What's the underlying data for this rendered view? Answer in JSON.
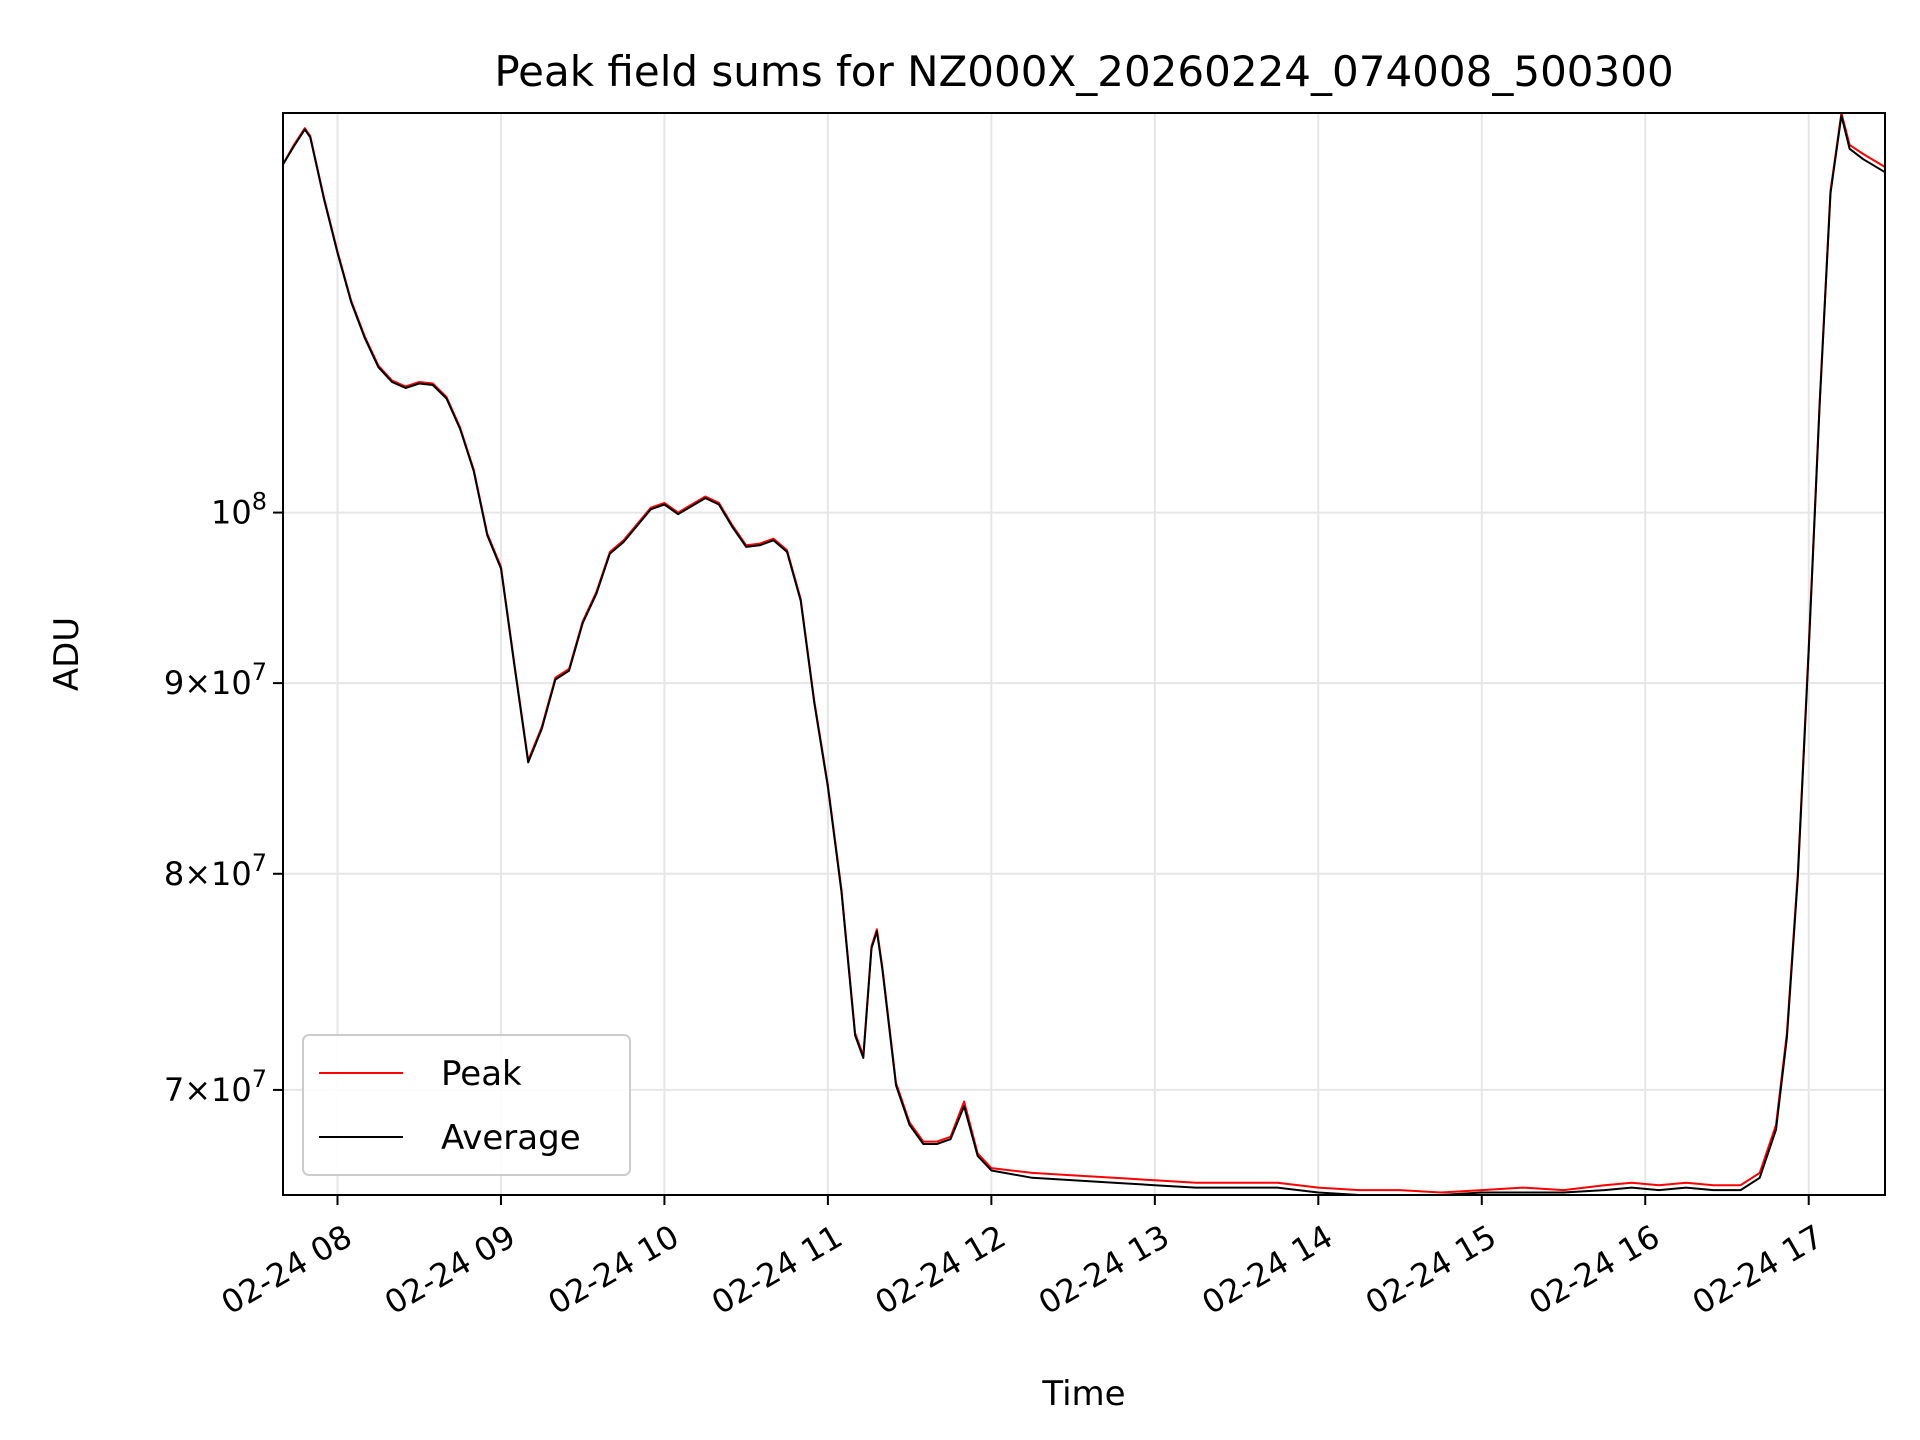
{
  "chart_data": {
    "type": "line",
    "title": "Peak field sums for NZ000X_20260224_074008_500300",
    "xlabel": "Time",
    "ylabel": "ADU",
    "y_scale": "log",
    "ylim": [
      65600000,
      128000000
    ],
    "xlim": [
      "2026-02-24 07:40",
      "2026-02-24 17:28"
    ],
    "grid": true,
    "legend_position": "lower-left",
    "x_ticks": [
      {
        "value": "2026-02-24 08:00",
        "label": "02-24 08"
      },
      {
        "value": "2026-02-24 09:00",
        "label": "02-24 09"
      },
      {
        "value": "2026-02-24 10:00",
        "label": "02-24 10"
      },
      {
        "value": "2026-02-24 11:00",
        "label": "02-24 11"
      },
      {
        "value": "2026-02-24 12:00",
        "label": "02-24 12"
      },
      {
        "value": "2026-02-24 13:00",
        "label": "02-24 13"
      },
      {
        "value": "2026-02-24 14:00",
        "label": "02-24 14"
      },
      {
        "value": "2026-02-24 15:00",
        "label": "02-24 15"
      },
      {
        "value": "2026-02-24 16:00",
        "label": "02-24 16"
      },
      {
        "value": "2026-02-24 17:00",
        "label": "02-24 17"
      }
    ],
    "y_ticks": [
      {
        "value": 70000000,
        "mantissa": "7×10",
        "exponent": "7"
      },
      {
        "value": 80000000,
        "mantissa": "8×10",
        "exponent": "7"
      },
      {
        "value": 90000000,
        "mantissa": "9×10",
        "exponent": "7"
      },
      {
        "value": 100000000,
        "mantissa": "10",
        "exponent": "8"
      }
    ],
    "series": [
      {
        "name": "Peak",
        "color": "#ff0000",
        "points": [
          [
            "2026-02-24 07:40",
            124000000
          ],
          [
            "2026-02-24 07:44",
            125500000
          ],
          [
            "2026-02-24 07:48",
            126800000
          ],
          [
            "2026-02-24 07:50",
            126200000
          ],
          [
            "2026-02-24 07:55",
            121500000
          ],
          [
            "2026-02-24 08:00",
            117500000
          ],
          [
            "2026-02-24 08:05",
            114000000
          ],
          [
            "2026-02-24 08:10",
            111500000
          ],
          [
            "2026-02-24 08:15",
            109500000
          ],
          [
            "2026-02-24 08:20",
            108500000
          ],
          [
            "2026-02-24 08:25",
            108100000
          ],
          [
            "2026-02-24 08:30",
            108400000
          ],
          [
            "2026-02-24 08:35",
            108300000
          ],
          [
            "2026-02-24 08:40",
            107400000
          ],
          [
            "2026-02-24 08:45",
            105400000
          ],
          [
            "2026-02-24 08:50",
            102700000
          ],
          [
            "2026-02-24 08:55",
            98700000
          ],
          [
            "2026-02-24 09:00",
            96700000
          ],
          [
            "2026-02-24 09:05",
            91000000
          ],
          [
            "2026-02-24 09:10",
            85800000
          ],
          [
            "2026-02-24 09:15",
            87600000
          ],
          [
            "2026-02-24 09:20",
            90300000
          ],
          [
            "2026-02-24 09:25",
            90800000
          ],
          [
            "2026-02-24 09:30",
            93500000
          ],
          [
            "2026-02-24 09:35",
            95200000
          ],
          [
            "2026-02-24 09:40",
            97600000
          ],
          [
            "2026-02-24 09:45",
            98300000
          ],
          [
            "2026-02-24 09:50",
            99300000
          ],
          [
            "2026-02-24 09:55",
            100300000
          ],
          [
            "2026-02-24 10:00",
            100600000
          ],
          [
            "2026-02-24 10:05",
            100000000
          ],
          [
            "2026-02-24 10:10",
            100500000
          ],
          [
            "2026-02-24 10:15",
            101000000
          ],
          [
            "2026-02-24 10:20",
            100600000
          ],
          [
            "2026-02-24 10:25",
            99200000
          ],
          [
            "2026-02-24 10:30",
            98000000
          ],
          [
            "2026-02-24 10:35",
            98100000
          ],
          [
            "2026-02-24 10:40",
            98400000
          ],
          [
            "2026-02-24 10:45",
            97700000
          ],
          [
            "2026-02-24 10:50",
            94800000
          ],
          [
            "2026-02-24 10:55",
            89000000
          ],
          [
            "2026-02-24 11:00",
            84500000
          ],
          [
            "2026-02-24 11:05",
            79200000
          ],
          [
            "2026-02-24 11:10",
            72500000
          ],
          [
            "2026-02-24 11:13",
            71500000
          ],
          [
            "2026-02-24 11:16",
            76500000
          ],
          [
            "2026-02-24 11:18",
            77300000
          ],
          [
            "2026-02-24 11:20",
            75500000
          ],
          [
            "2026-02-24 11:25",
            70300000
          ],
          [
            "2026-02-24 11:30",
            68600000
          ],
          [
            "2026-02-24 11:35",
            67800000
          ],
          [
            "2026-02-24 11:40",
            67800000
          ],
          [
            "2026-02-24 11:45",
            68000000
          ],
          [
            "2026-02-24 11:50",
            69500000
          ],
          [
            "2026-02-24 11:55",
            67300000
          ],
          [
            "2026-02-24 12:00",
            66700000
          ],
          [
            "2026-02-24 12:15",
            66500000
          ],
          [
            "2026-02-24 12:30",
            66400000
          ],
          [
            "2026-02-24 12:45",
            66300000
          ],
          [
            "2026-02-24 13:00",
            66200000
          ],
          [
            "2026-02-24 13:15",
            66100000
          ],
          [
            "2026-02-24 13:30",
            66100000
          ],
          [
            "2026-02-24 13:45",
            66100000
          ],
          [
            "2026-02-24 14:00",
            65900000
          ],
          [
            "2026-02-24 14:15",
            65800000
          ],
          [
            "2026-02-24 14:30",
            65800000
          ],
          [
            "2026-02-24 14:45",
            65700000
          ],
          [
            "2026-02-24 15:00",
            65800000
          ],
          [
            "2026-02-24 15:15",
            65900000
          ],
          [
            "2026-02-24 15:30",
            65800000
          ],
          [
            "2026-02-24 15:45",
            66000000
          ],
          [
            "2026-02-24 15:55",
            66100000
          ],
          [
            "2026-02-24 16:05",
            66000000
          ],
          [
            "2026-02-24 16:15",
            66100000
          ],
          [
            "2026-02-24 16:25",
            66000000
          ],
          [
            "2026-02-24 16:35",
            66000000
          ],
          [
            "2026-02-24 16:42",
            66500000
          ],
          [
            "2026-02-24 16:48",
            68500000
          ],
          [
            "2026-02-24 16:52",
            72500000
          ],
          [
            "2026-02-24 16:56",
            80000000
          ],
          [
            "2026-02-24 17:00",
            92000000
          ],
          [
            "2026-02-24 17:04",
            107000000
          ],
          [
            "2026-02-24 17:08",
            122000000
          ],
          [
            "2026-02-24 17:12",
            128000000
          ],
          [
            "2026-02-24 17:15",
            125500000
          ],
          [
            "2026-02-24 17:20",
            124800000
          ],
          [
            "2026-02-24 17:28",
            123800000
          ]
        ]
      },
      {
        "name": "Average",
        "color": "#000000",
        "points": [
          [
            "2026-02-24 07:40",
            124000000
          ],
          [
            "2026-02-24 07:44",
            125400000
          ],
          [
            "2026-02-24 07:48",
            126700000
          ],
          [
            "2026-02-24 07:50",
            126100000
          ],
          [
            "2026-02-24 07:55",
            121400000
          ],
          [
            "2026-02-24 08:00",
            117400000
          ],
          [
            "2026-02-24 08:05",
            113900000
          ],
          [
            "2026-02-24 08:10",
            111400000
          ],
          [
            "2026-02-24 08:15",
            109400000
          ],
          [
            "2026-02-24 08:20",
            108400000
          ],
          [
            "2026-02-24 08:25",
            108000000
          ],
          [
            "2026-02-24 08:30",
            108300000
          ],
          [
            "2026-02-24 08:35",
            108200000
          ],
          [
            "2026-02-24 08:40",
            107300000
          ],
          [
            "2026-02-24 08:45",
            105300000
          ],
          [
            "2026-02-24 08:50",
            102600000
          ],
          [
            "2026-02-24 08:55",
            98600000
          ],
          [
            "2026-02-24 09:00",
            96600000
          ],
          [
            "2026-02-24 09:05",
            90900000
          ],
          [
            "2026-02-24 09:10",
            85700000
          ],
          [
            "2026-02-24 09:15",
            87500000
          ],
          [
            "2026-02-24 09:20",
            90200000
          ],
          [
            "2026-02-24 09:25",
            90700000
          ],
          [
            "2026-02-24 09:30",
            93400000
          ],
          [
            "2026-02-24 09:35",
            95100000
          ],
          [
            "2026-02-24 09:40",
            97500000
          ],
          [
            "2026-02-24 09:45",
            98200000
          ],
          [
            "2026-02-24 09:50",
            99200000
          ],
          [
            "2026-02-24 09:55",
            100200000
          ],
          [
            "2026-02-24 10:00",
            100500000
          ],
          [
            "2026-02-24 10:05",
            99900000
          ],
          [
            "2026-02-24 10:10",
            100400000
          ],
          [
            "2026-02-24 10:15",
            100900000
          ],
          [
            "2026-02-24 10:20",
            100500000
          ],
          [
            "2026-02-24 10:25",
            99100000
          ],
          [
            "2026-02-24 10:30",
            97900000
          ],
          [
            "2026-02-24 10:35",
            98000000
          ],
          [
            "2026-02-24 10:40",
            98300000
          ],
          [
            "2026-02-24 10:45",
            97600000
          ],
          [
            "2026-02-24 10:50",
            94700000
          ],
          [
            "2026-02-24 10:55",
            88900000
          ],
          [
            "2026-02-24 11:00",
            84400000
          ],
          [
            "2026-02-24 11:05",
            79100000
          ],
          [
            "2026-02-24 11:10",
            72400000
          ],
          [
            "2026-02-24 11:13",
            71400000
          ],
          [
            "2026-02-24 11:16",
            76400000
          ],
          [
            "2026-02-24 11:18",
            77200000
          ],
          [
            "2026-02-24 11:20",
            75400000
          ],
          [
            "2026-02-24 11:25",
            70200000
          ],
          [
            "2026-02-24 11:30",
            68500000
          ],
          [
            "2026-02-24 11:35",
            67700000
          ],
          [
            "2026-02-24 11:40",
            67700000
          ],
          [
            "2026-02-24 11:45",
            67900000
          ],
          [
            "2026-02-24 11:50",
            69300000
          ],
          [
            "2026-02-24 11:55",
            67200000
          ],
          [
            "2026-02-24 12:00",
            66600000
          ],
          [
            "2026-02-24 12:15",
            66300000
          ],
          [
            "2026-02-24 12:30",
            66200000
          ],
          [
            "2026-02-24 12:45",
            66100000
          ],
          [
            "2026-02-24 13:00",
            66000000
          ],
          [
            "2026-02-24 13:15",
            65900000
          ],
          [
            "2026-02-24 13:30",
            65900000
          ],
          [
            "2026-02-24 13:45",
            65900000
          ],
          [
            "2026-02-24 14:00",
            65700000
          ],
          [
            "2026-02-24 14:15",
            65600000
          ],
          [
            "2026-02-24 14:30",
            65600000
          ],
          [
            "2026-02-24 14:45",
            65600000
          ],
          [
            "2026-02-24 15:00",
            65700000
          ],
          [
            "2026-02-24 15:15",
            65700000
          ],
          [
            "2026-02-24 15:30",
            65700000
          ],
          [
            "2026-02-24 15:45",
            65800000
          ],
          [
            "2026-02-24 15:55",
            65900000
          ],
          [
            "2026-02-24 16:05",
            65800000
          ],
          [
            "2026-02-24 16:15",
            65900000
          ],
          [
            "2026-02-24 16:25",
            65800000
          ],
          [
            "2026-02-24 16:35",
            65800000
          ],
          [
            "2026-02-24 16:42",
            66300000
          ],
          [
            "2026-02-24 16:48",
            68300000
          ],
          [
            "2026-02-24 16:52",
            72300000
          ],
          [
            "2026-02-24 16:56",
            79800000
          ],
          [
            "2026-02-24 17:00",
            91800000
          ],
          [
            "2026-02-24 17:04",
            106800000
          ],
          [
            "2026-02-24 17:08",
            121800000
          ],
          [
            "2026-02-24 17:12",
            127800000
          ],
          [
            "2026-02-24 17:15",
            125200000
          ],
          [
            "2026-02-24 17:20",
            124400000
          ],
          [
            "2026-02-24 17:28",
            123400000
          ]
        ]
      }
    ]
  }
}
